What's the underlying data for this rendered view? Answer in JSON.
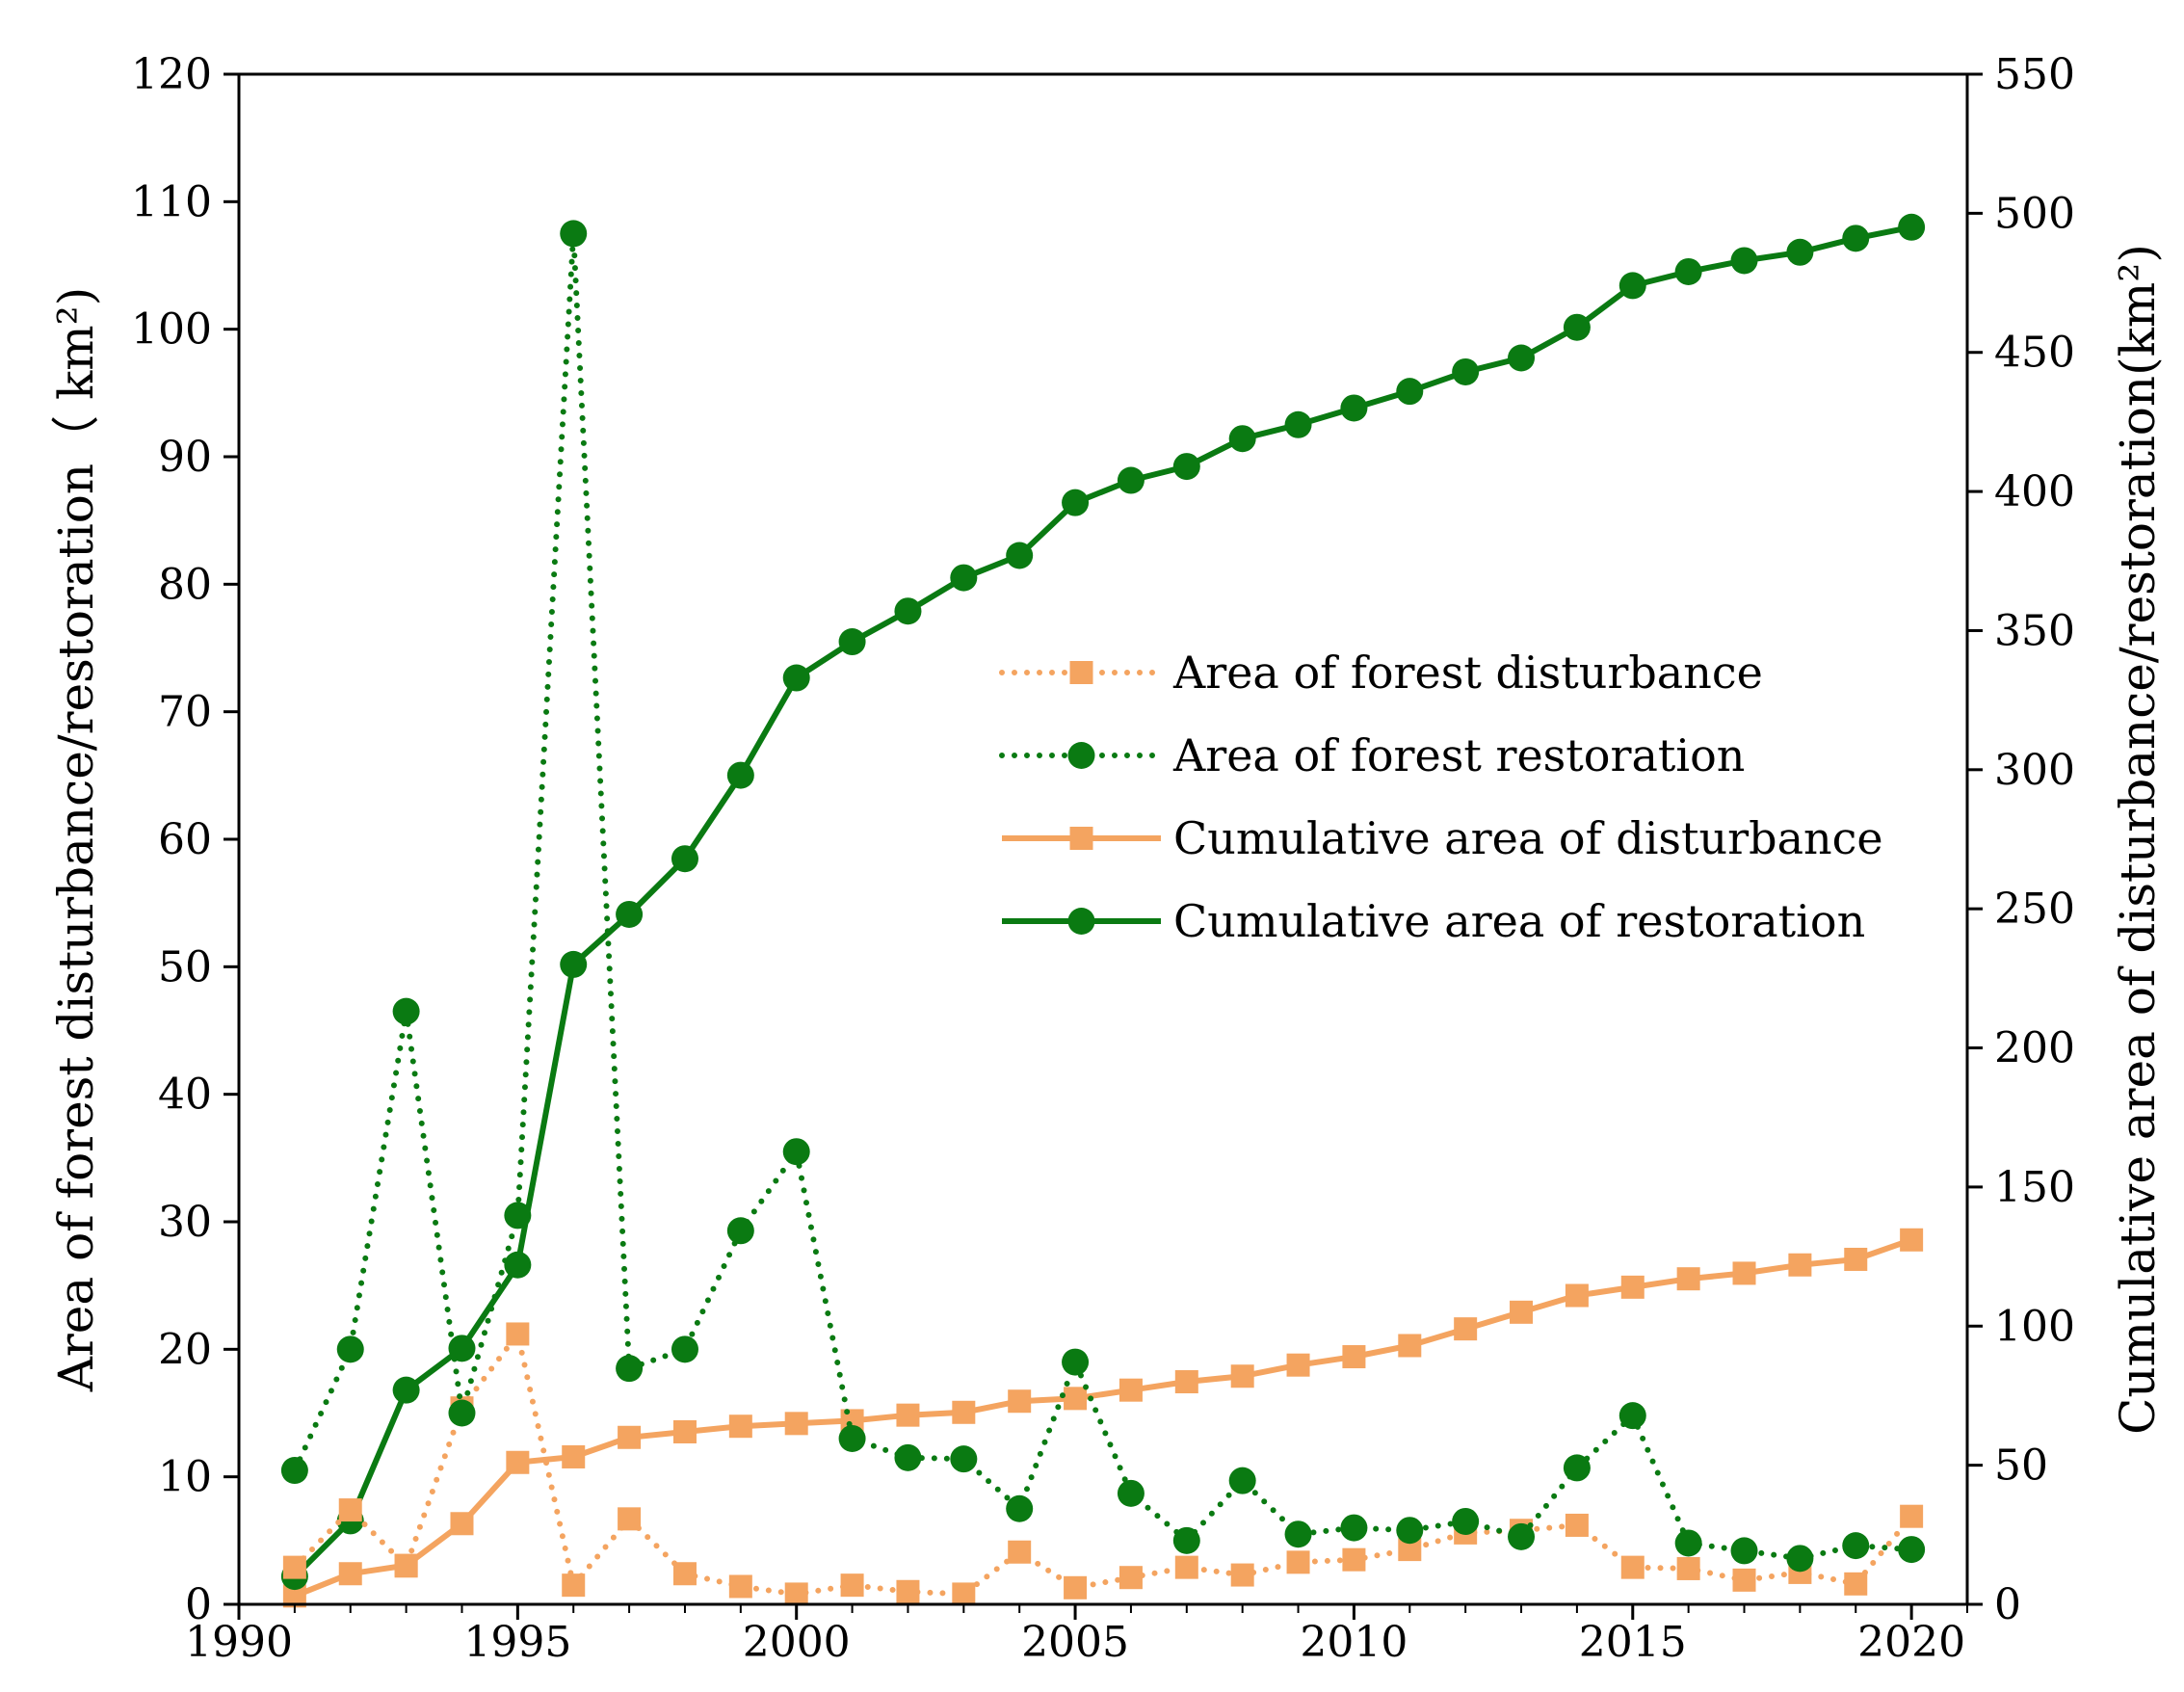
{
  "chart_data": {
    "type": "line",
    "title": "",
    "x": [
      1991,
      1992,
      1993,
      1994,
      1995,
      1996,
      1997,
      1998,
      1999,
      2000,
      2001,
      2002,
      2003,
      2004,
      2005,
      2006,
      2007,
      2008,
      2009,
      2010,
      2011,
      2012,
      2013,
      2014,
      2015,
      2016,
      2017,
      2018,
      2019,
      2020
    ],
    "xlabel": "",
    "xlim": [
      1990,
      2021
    ],
    "xticks": [
      "1990",
      "1995",
      "2000",
      "2005",
      "2010",
      "2015",
      "2020"
    ],
    "ylabel_left": "Area of forest disturbance/restoration（ km²)",
    "ylim_left": [
      0,
      120
    ],
    "yticks_left": [
      "0",
      "10",
      "20",
      "30",
      "40",
      "50",
      "60",
      "70",
      "80",
      "90",
      "100",
      "110",
      "120"
    ],
    "ylabel_right": "Cumulative area of disturbance/restoration(km²)",
    "ylim_right": [
      0,
      550
    ],
    "yticks_right": [
      "0",
      "50",
      "100",
      "150",
      "200",
      "250",
      "300",
      "350",
      "400",
      "450",
      "500",
      "550"
    ],
    "legend_position": "center-right",
    "series": [
      {
        "name": "Area of forest disturbance",
        "axis": "left",
        "style": "dotted",
        "marker": "square",
        "color": "#F4A460",
        "values": [
          2.9,
          7.4,
          3.0,
          15.4,
          21.2,
          1.5,
          6.7,
          2.4,
          1.4,
          0.8,
          1.5,
          1.0,
          0.8,
          4.1,
          1.3,
          2.1,
          2.9,
          2.3,
          3.3,
          3.5,
          4.3,
          5.6,
          5.8,
          6.2,
          2.9,
          2.8,
          1.9,
          2.5,
          1.6,
          6.9
        ]
      },
      {
        "name": "Area of forest restoration",
        "axis": "left",
        "style": "dotted",
        "marker": "circle",
        "color": "#0A7A12",
        "values": [
          10.5,
          20.0,
          46.5,
          15.0,
          30.5,
          107.5,
          18.5,
          20.0,
          29.3,
          35.5,
          13.0,
          11.5,
          11.4,
          7.5,
          19.0,
          8.7,
          5.0,
          9.7,
          5.5,
          6.0,
          5.8,
          6.5,
          5.3,
          10.7,
          14.8,
          4.8,
          4.2,
          3.6,
          4.6,
          4.3
        ]
      },
      {
        "name": "Cumulative area of disturbance",
        "axis": "right",
        "style": "solid",
        "marker": "square",
        "color": "#F4A460",
        "values": [
          3,
          11,
          14,
          29,
          51,
          53,
          60,
          62,
          64,
          65,
          66,
          68,
          69,
          73,
          74,
          77,
          80,
          82,
          86,
          89,
          93,
          99,
          105,
          111,
          114,
          117,
          119,
          122,
          124,
          131
        ]
      },
      {
        "name": "Cumulative area of restoration",
        "axis": "right",
        "style": "solid",
        "marker": "circle",
        "color": "#0A7A12",
        "values": [
          10,
          30,
          77,
          92,
          122,
          230,
          248,
          268,
          298,
          333,
          346,
          357,
          369,
          377,
          396,
          404,
          409,
          419,
          424,
          430,
          436,
          443,
          448,
          459,
          474,
          479,
          483,
          486,
          491,
          495
        ]
      }
    ]
  }
}
